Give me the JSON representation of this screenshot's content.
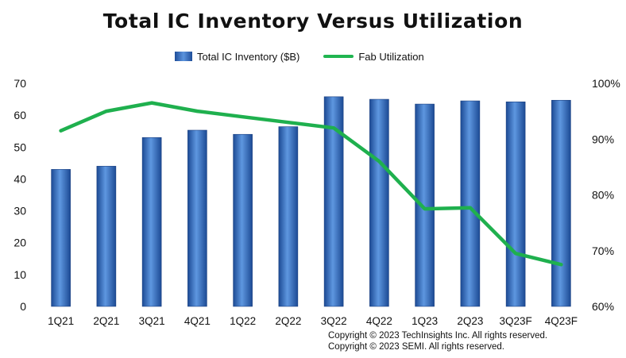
{
  "chart_data": {
    "type": "bar",
    "title": "Total IC Inventory Versus Utilization",
    "categories": [
      "1Q21",
      "2Q21",
      "3Q21",
      "4Q21",
      "1Q22",
      "2Q22",
      "3Q22",
      "4Q22",
      "1Q23",
      "2Q23",
      "3Q23F",
      "4Q23F"
    ],
    "series": [
      {
        "name": "Total IC Inventory ($B)",
        "type": "bar",
        "axis": "left",
        "values": [
          43,
          44,
          53,
          55.3,
          54,
          56.4,
          65.8,
          65,
          63.5,
          64.5,
          64.2,
          64.7
        ]
      },
      {
        "name": "Fab Utilization",
        "type": "line",
        "axis": "right",
        "values": [
          91.5,
          95,
          96.5,
          95,
          94,
          93,
          92,
          86,
          77.5,
          77.7,
          69.5,
          67.5
        ]
      }
    ],
    "left_axis": {
      "ylim": [
        0,
        70
      ],
      "ticks": [
        "0",
        "10",
        "20",
        "30",
        "40",
        "50",
        "60",
        "70"
      ]
    },
    "right_axis": {
      "ylim": [
        60,
        100
      ],
      "ticks": [
        "60%",
        "70%",
        "80%",
        "90%",
        "100%"
      ]
    },
    "legend_position": "top",
    "grid": false,
    "colors": {
      "bar": "#2f66b8",
      "line": "#1fb04e"
    }
  },
  "copyright": [
    "Copyright © 2023 TechInsights Inc.  All rights reserved.",
    "Copyright © 2023 SEMI.  All rights reserved."
  ]
}
